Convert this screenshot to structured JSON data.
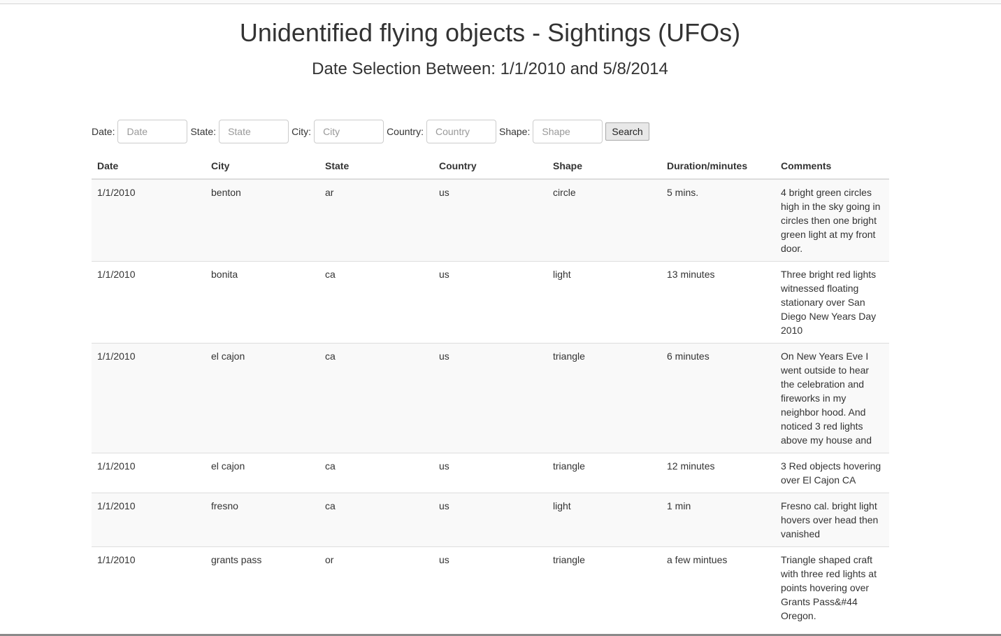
{
  "header": {
    "title": "Unidentified flying objects - Sightings (UFOs)",
    "subtitle": "Date Selection Between: 1/1/2010 and 5/8/2014"
  },
  "filters": {
    "date_label": "Date:",
    "date_placeholder": "Date",
    "state_label": "State:",
    "state_placeholder": "State",
    "city_label": "City:",
    "city_placeholder": "City",
    "country_label": "Country:",
    "country_placeholder": "Country",
    "shape_label": "Shape:",
    "shape_placeholder": "Shape",
    "search_label": "Search"
  },
  "table": {
    "columns": [
      "Date",
      "City",
      "State",
      "Country",
      "Shape",
      "Duration/minutes",
      "Comments"
    ],
    "rows": [
      [
        "1/1/2010",
        "benton",
        "ar",
        "us",
        "circle",
        "5 mins.",
        "4 bright green circles high in the sky going in circles then one bright green light at my front door."
      ],
      [
        "1/1/2010",
        "bonita",
        "ca",
        "us",
        "light",
        "13 minutes",
        "Three bright red lights witnessed floating stationary over San Diego New Years Day 2010"
      ],
      [
        "1/1/2010",
        "el cajon",
        "ca",
        "us",
        "triangle",
        "6 minutes",
        "On New Years Eve I went outside to hear the celebration and fireworks in my neighbor hood. And noticed 3 red lights above my house and"
      ],
      [
        "1/1/2010",
        "el cajon",
        "ca",
        "us",
        "triangle",
        "12 minutes",
        "3 Red objects hovering over El Cajon CA"
      ],
      [
        "1/1/2010",
        "fresno",
        "ca",
        "us",
        "light",
        "1 min",
        "Fresno cal. bright light hovers over head then vanished"
      ],
      [
        "1/1/2010",
        "grants pass",
        "or",
        "us",
        "triangle",
        "a few mintues",
        "Triangle shaped craft with three red lights at points hovering over Grants Pass&#44 Oregon."
      ]
    ]
  }
}
